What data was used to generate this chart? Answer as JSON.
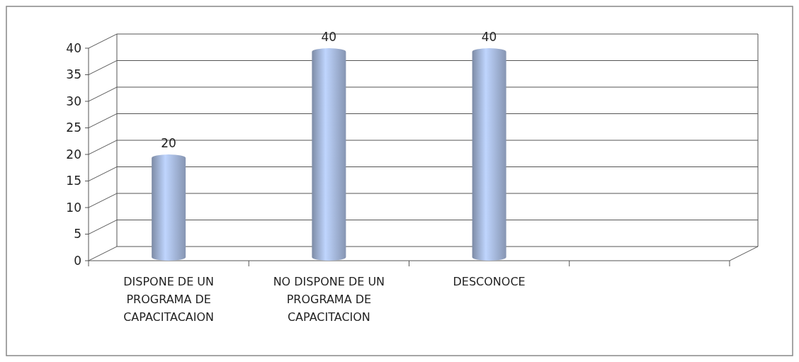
{
  "chart_data": {
    "type": "bar",
    "categories": [
      "DISPONE DE UN PROGRAMA DE CAPACITACAION",
      "NO DISPONE DE UN PROGRAMA DE CAPACITACION",
      "DESCONOCE",
      null
    ],
    "values": [
      20,
      40,
      40,
      null
    ],
    "color": "#a6b9dc",
    "ylim": [
      0,
      40
    ],
    "yticks": [
      0,
      5,
      10,
      15,
      20,
      25,
      30,
      35,
      40
    ],
    "grid": "y",
    "data_labels": true
  }
}
